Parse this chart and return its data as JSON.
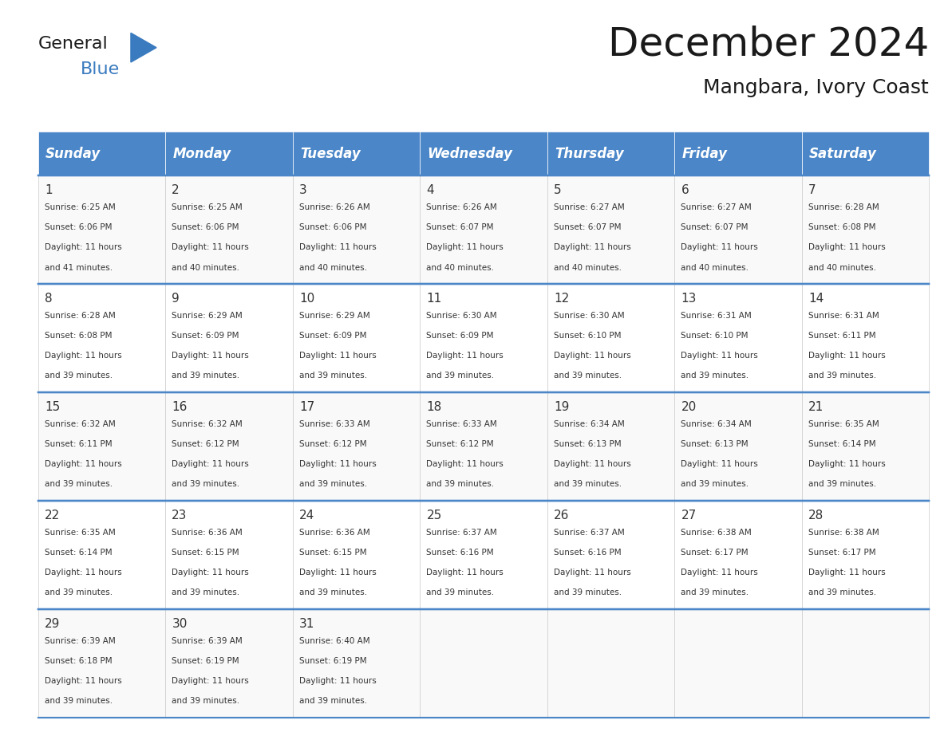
{
  "title": "December 2024",
  "subtitle": "Mangbara, Ivory Coast",
  "header_color": "#4a86c8",
  "header_text_color": "#ffffff",
  "days_of_week": [
    "Sunday",
    "Monday",
    "Tuesday",
    "Wednesday",
    "Thursday",
    "Friday",
    "Saturday"
  ],
  "cell_bg_color": "#ffffff",
  "cell_alt_bg_color": "#f5f5f5",
  "border_color": "#4a86c8",
  "day_num_color": "#333333",
  "text_color": "#333333",
  "weeks": [
    [
      {
        "day": 1,
        "sunrise": "6:25 AM",
        "sunset": "6:06 PM",
        "daylight": "11 hours and 41 minutes."
      },
      {
        "day": 2,
        "sunrise": "6:25 AM",
        "sunset": "6:06 PM",
        "daylight": "11 hours and 40 minutes."
      },
      {
        "day": 3,
        "sunrise": "6:26 AM",
        "sunset": "6:06 PM",
        "daylight": "11 hours and 40 minutes."
      },
      {
        "day": 4,
        "sunrise": "6:26 AM",
        "sunset": "6:07 PM",
        "daylight": "11 hours and 40 minutes."
      },
      {
        "day": 5,
        "sunrise": "6:27 AM",
        "sunset": "6:07 PM",
        "daylight": "11 hours and 40 minutes."
      },
      {
        "day": 6,
        "sunrise": "6:27 AM",
        "sunset": "6:07 PM",
        "daylight": "11 hours and 40 minutes."
      },
      {
        "day": 7,
        "sunrise": "6:28 AM",
        "sunset": "6:08 PM",
        "daylight": "11 hours and 40 minutes."
      }
    ],
    [
      {
        "day": 8,
        "sunrise": "6:28 AM",
        "sunset": "6:08 PM",
        "daylight": "11 hours and 39 minutes."
      },
      {
        "day": 9,
        "sunrise": "6:29 AM",
        "sunset": "6:09 PM",
        "daylight": "11 hours and 39 minutes."
      },
      {
        "day": 10,
        "sunrise": "6:29 AM",
        "sunset": "6:09 PM",
        "daylight": "11 hours and 39 minutes."
      },
      {
        "day": 11,
        "sunrise": "6:30 AM",
        "sunset": "6:09 PM",
        "daylight": "11 hours and 39 minutes."
      },
      {
        "day": 12,
        "sunrise": "6:30 AM",
        "sunset": "6:10 PM",
        "daylight": "11 hours and 39 minutes."
      },
      {
        "day": 13,
        "sunrise": "6:31 AM",
        "sunset": "6:10 PM",
        "daylight": "11 hours and 39 minutes."
      },
      {
        "day": 14,
        "sunrise": "6:31 AM",
        "sunset": "6:11 PM",
        "daylight": "11 hours and 39 minutes."
      }
    ],
    [
      {
        "day": 15,
        "sunrise": "6:32 AM",
        "sunset": "6:11 PM",
        "daylight": "11 hours and 39 minutes."
      },
      {
        "day": 16,
        "sunrise": "6:32 AM",
        "sunset": "6:12 PM",
        "daylight": "11 hours and 39 minutes."
      },
      {
        "day": 17,
        "sunrise": "6:33 AM",
        "sunset": "6:12 PM",
        "daylight": "11 hours and 39 minutes."
      },
      {
        "day": 18,
        "sunrise": "6:33 AM",
        "sunset": "6:12 PM",
        "daylight": "11 hours and 39 minutes."
      },
      {
        "day": 19,
        "sunrise": "6:34 AM",
        "sunset": "6:13 PM",
        "daylight": "11 hours and 39 minutes."
      },
      {
        "day": 20,
        "sunrise": "6:34 AM",
        "sunset": "6:13 PM",
        "daylight": "11 hours and 39 minutes."
      },
      {
        "day": 21,
        "sunrise": "6:35 AM",
        "sunset": "6:14 PM",
        "daylight": "11 hours and 39 minutes."
      }
    ],
    [
      {
        "day": 22,
        "sunrise": "6:35 AM",
        "sunset": "6:14 PM",
        "daylight": "11 hours and 39 minutes."
      },
      {
        "day": 23,
        "sunrise": "6:36 AM",
        "sunset": "6:15 PM",
        "daylight": "11 hours and 39 minutes."
      },
      {
        "day": 24,
        "sunrise": "6:36 AM",
        "sunset": "6:15 PM",
        "daylight": "11 hours and 39 minutes."
      },
      {
        "day": 25,
        "sunrise": "6:37 AM",
        "sunset": "6:16 PM",
        "daylight": "11 hours and 39 minutes."
      },
      {
        "day": 26,
        "sunrise": "6:37 AM",
        "sunset": "6:16 PM",
        "daylight": "11 hours and 39 minutes."
      },
      {
        "day": 27,
        "sunrise": "6:38 AM",
        "sunset": "6:17 PM",
        "daylight": "11 hours and 39 minutes."
      },
      {
        "day": 28,
        "sunrise": "6:38 AM",
        "sunset": "6:17 PM",
        "daylight": "11 hours and 39 minutes."
      }
    ],
    [
      {
        "day": 29,
        "sunrise": "6:39 AM",
        "sunset": "6:18 PM",
        "daylight": "11 hours and 39 minutes."
      },
      {
        "day": 30,
        "sunrise": "6:39 AM",
        "sunset": "6:19 PM",
        "daylight": "11 hours and 39 minutes."
      },
      {
        "day": 31,
        "sunrise": "6:40 AM",
        "sunset": "6:19 PM",
        "daylight": "11 hours and 39 minutes."
      },
      null,
      null,
      null,
      null
    ]
  ]
}
